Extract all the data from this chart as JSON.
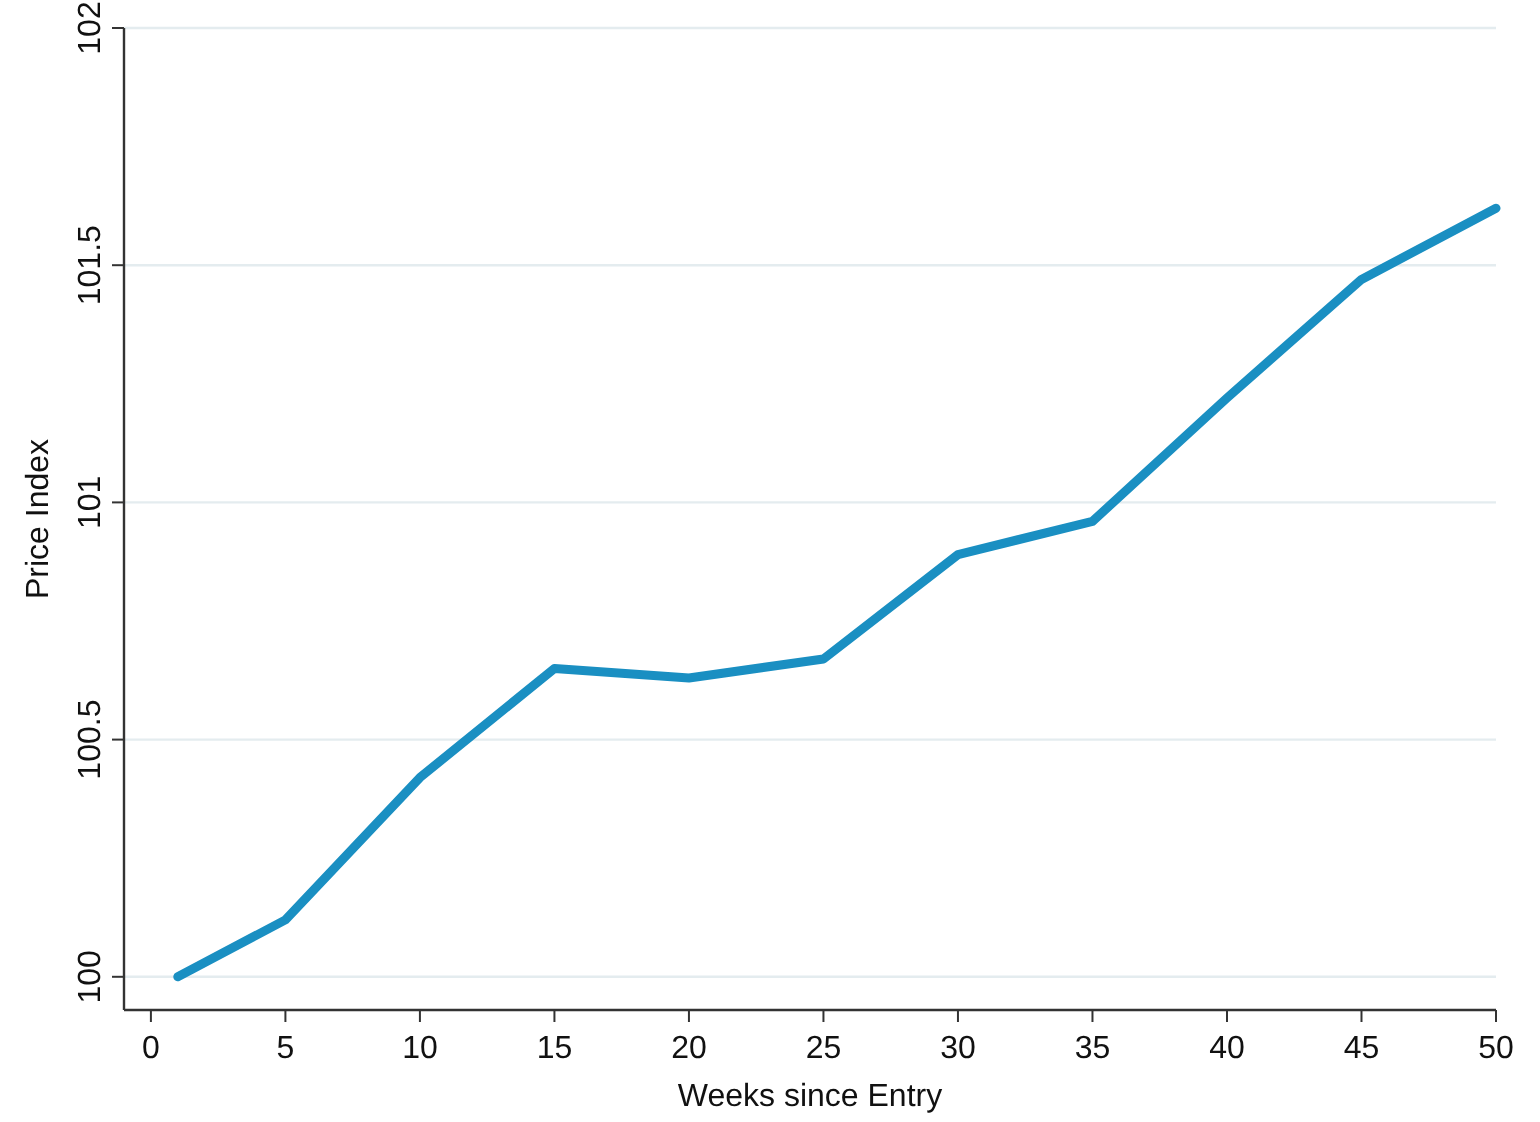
{
  "chart_data": {
    "type": "line",
    "xlabel": "Weeks since Entry",
    "ylabel": "Price Index",
    "x": [
      1,
      5,
      10,
      15,
      20,
      25,
      30,
      35,
      40,
      45,
      50
    ],
    "series": [
      {
        "color": "#1a8fc2",
        "values": [
          100.0,
          100.12,
          100.42,
          100.65,
          100.63,
          100.67,
          100.89,
          100.96,
          101.22,
          101.47,
          101.62
        ]
      }
    ],
    "xlim": [
      -1,
      50
    ],
    "xticks": [
      0,
      5,
      10,
      15,
      20,
      25,
      30,
      35,
      40,
      45,
      50
    ],
    "ylim": [
      99.93,
      102
    ],
    "yticks": [
      100,
      100.5,
      101,
      101.5,
      102
    ],
    "grid": "y",
    "marker": "none",
    "line_style": "solid"
  }
}
